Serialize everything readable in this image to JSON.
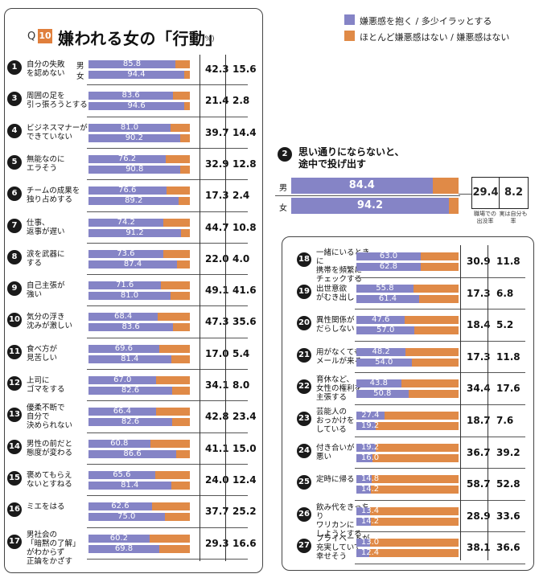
{
  "header": {
    "q": "Q",
    "q_num": "10",
    "title": "嫌われる女の「行動」",
    "unit": "(%)"
  },
  "legend": [
    {
      "label": "嫌悪感を抱く / 多少イラッとする",
      "color": "#8584c6"
    },
    {
      "label": "ほとんど嫌悪感はない / 嫌悪感はない",
      "color": "#e08a47"
    }
  ],
  "gender_labels": {
    "male": "男",
    "female": "女"
  },
  "chart_data": {
    "type": "bar",
    "orientation": "horizontal",
    "stacked": true,
    "xlim": [
      0,
      100
    ],
    "unit": "%",
    "series_names": [
      "嫌悪感を抱く / 多少イラッとする",
      "ほとんど嫌悪感はない / 嫌悪感はない"
    ],
    "items": [
      {
        "rank": 1,
        "label": [
          "自分の失敗",
          "を認めない"
        ],
        "male": 85.8,
        "female": 94.4,
        "col1": "42.3",
        "col2": "15.6"
      },
      {
        "rank": 3,
        "label": [
          "周囲の足を",
          "引っ張ろうとする"
        ],
        "male": 83.6,
        "female": 94.6,
        "col1": "21.4",
        "col2": "2.8"
      },
      {
        "rank": 4,
        "label": [
          "ビジネスマナーが",
          "できていない"
        ],
        "male": 81.0,
        "female": 90.2,
        "col1": "39.7",
        "col2": "14.4"
      },
      {
        "rank": 5,
        "label": [
          "無能なのに",
          "エラそう"
        ],
        "male": 76.2,
        "female": 90.8,
        "col1": "32.9",
        "col2": "12.8"
      },
      {
        "rank": 6,
        "label": [
          "チームの成果を",
          "独り占めする"
        ],
        "male": 76.6,
        "female": 89.2,
        "col1": "17.3",
        "col2": "2.4"
      },
      {
        "rank": 7,
        "label": [
          "仕事、",
          "返事が遅い"
        ],
        "male": 74.2,
        "female": 91.2,
        "col1": "44.7",
        "col2": "10.8"
      },
      {
        "rank": 8,
        "label": [
          "涙を武器に",
          "する"
        ],
        "male": 73.6,
        "female": 87.4,
        "col1": "22.0",
        "col2": "4.0"
      },
      {
        "rank": 9,
        "label": [
          "自己主張が",
          "強い"
        ],
        "male": 71.6,
        "female": 81.0,
        "col1": "49.1",
        "col2": "41.6"
      },
      {
        "rank": 10,
        "label": [
          "気分の浮き",
          "沈みが激しい"
        ],
        "male": 68.4,
        "female": 83.6,
        "col1": "47.3",
        "col2": "35.6"
      },
      {
        "rank": 11,
        "label": [
          "食べ方が",
          "見苦しい"
        ],
        "male": 69.6,
        "female": 81.4,
        "col1": "17.0",
        "col2": "5.4"
      },
      {
        "rank": 12,
        "label": [
          "上司に",
          "ゴマをする"
        ],
        "male": 67.0,
        "female": 82.6,
        "col1": "34.1",
        "col2": "8.0"
      },
      {
        "rank": 13,
        "label": [
          "優柔不断で",
          "自分で",
          "決められない"
        ],
        "male": 66.4,
        "female": 82.6,
        "col1": "42.8",
        "col2": "23.4"
      },
      {
        "rank": 14,
        "label": [
          "男性の前だと",
          "態度が変わる"
        ],
        "male": 60.8,
        "female": 86.6,
        "col1": "41.1",
        "col2": "15.0"
      },
      {
        "rank": 15,
        "label": [
          "褒めてもらえ",
          "ないとすねる"
        ],
        "male": 65.6,
        "female": 81.4,
        "col1": "24.0",
        "col2": "12.4"
      },
      {
        "rank": 16,
        "label": [
          "ミエをはる"
        ],
        "male": 62.6,
        "female": 75.0,
        "col1": "37.7",
        "col2": "25.2"
      },
      {
        "rank": 17,
        "label": [
          "男社会の",
          "「暗黙の了解」",
          "がわからず",
          "正論をかざす"
        ],
        "male": 60.2,
        "female": 69.8,
        "col1": "29.3",
        "col2": "16.6"
      },
      {
        "rank": 18,
        "label": [
          "一緒にいるときに",
          "携帯を頻繁に",
          "チェックする"
        ],
        "male": 63.0,
        "female": 62.8,
        "col1": "30.9",
        "col2": "11.8"
      },
      {
        "rank": 19,
        "label": [
          "出世意欲",
          "がむき出し"
        ],
        "male": 55.8,
        "female": 61.4,
        "col1": "17.3",
        "col2": "6.8"
      },
      {
        "rank": 20,
        "label": [
          "異性関係が",
          "だらしない"
        ],
        "male": 47.6,
        "female": 57.0,
        "col1": "18.4",
        "col2": "5.2"
      },
      {
        "rank": 21,
        "label": [
          "用がなくても",
          "メールが来る"
        ],
        "male": 48.2,
        "female": 54.0,
        "col1": "17.3",
        "col2": "11.8"
      },
      {
        "rank": 22,
        "label": [
          "育休など、",
          "女性の権利を",
          "主張する"
        ],
        "male": 43.8,
        "female": 50.8,
        "col1": "34.4",
        "col2": "17.6"
      },
      {
        "rank": 23,
        "label": [
          "芸能人の",
          "おっかけを",
          "している"
        ],
        "male": 27.4,
        "female": 19.2,
        "col1": "18.7",
        "col2": "7.6"
      },
      {
        "rank": 24,
        "label": [
          "付き合いが",
          "悪い"
        ],
        "male": 19.2,
        "female": 16.0,
        "col1": "36.7",
        "col2": "39.2"
      },
      {
        "rank": 25,
        "label": [
          "定時に帰る"
        ],
        "male": 14.8,
        "female": 14.2,
        "col1": "58.7",
        "col2": "52.8"
      },
      {
        "rank": 26,
        "label": [
          "飲み代をきっちり",
          "ワリカンに",
          "しようとする"
        ],
        "male": 13.4,
        "female": 14.2,
        "col1": "28.9",
        "col2": "33.6"
      },
      {
        "rank": 27,
        "label": [
          "プライベートが",
          "充実していて",
          "幸せそう"
        ],
        "male": 13.0,
        "female": 12.4,
        "col1": "38.1",
        "col2": "36.6"
      }
    ],
    "featured": {
      "rank": 2,
      "label": [
        "思い通りにならないと、",
        "途中で投げ出す"
      ],
      "male": 84.4,
      "female": 94.2,
      "col1": "29.4",
      "col2": "8.2",
      "col1_label": [
        "職場での",
        "出没率"
      ],
      "col2_label": [
        "実は自分も",
        "率"
      ]
    }
  }
}
